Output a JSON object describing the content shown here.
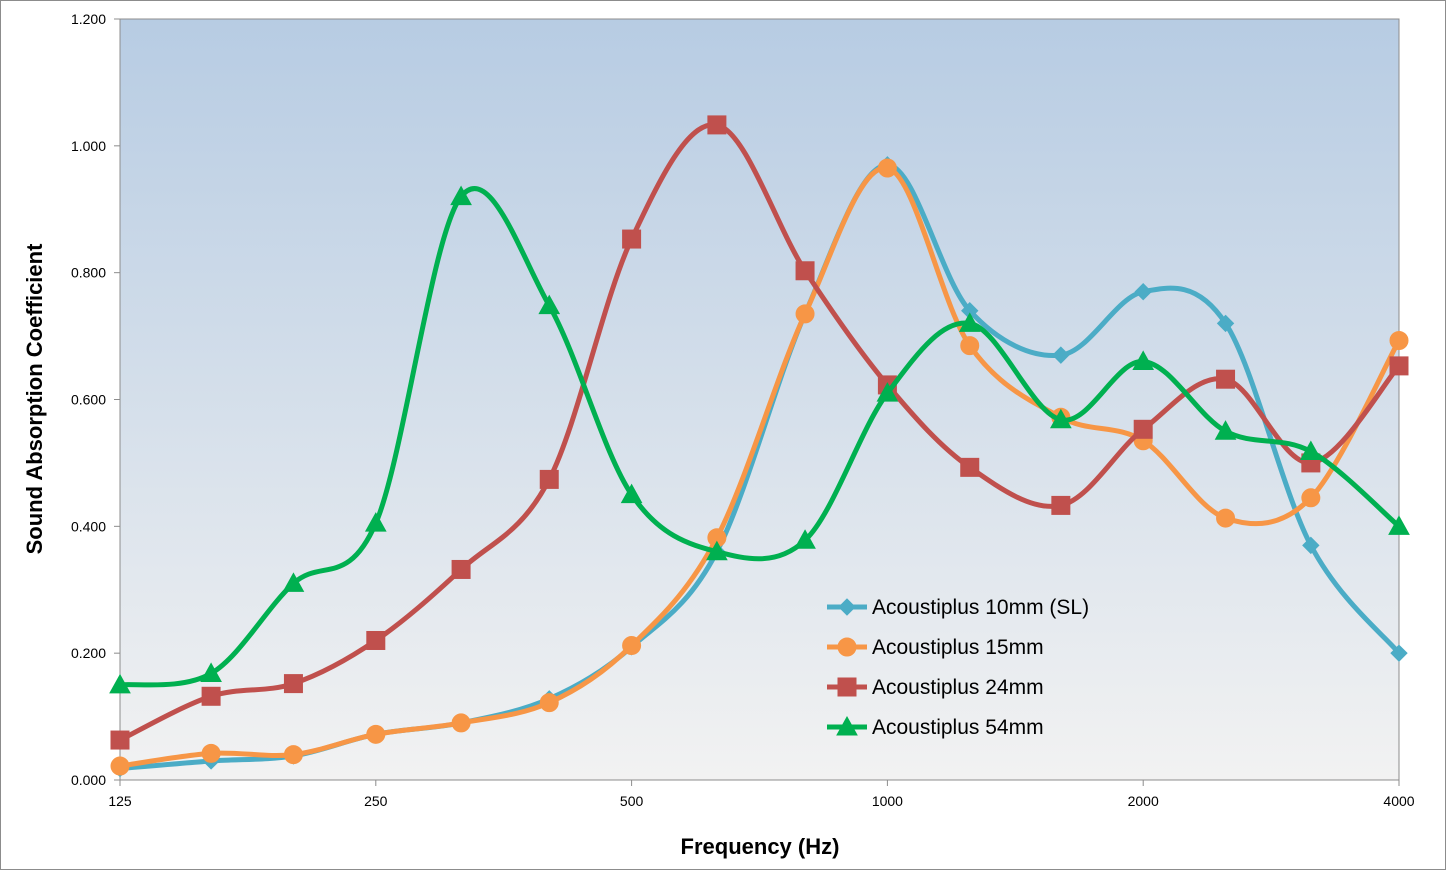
{
  "chart_data": {
    "type": "line",
    "title": "",
    "xlabel": "Frequency (Hz)",
    "ylabel": "Sound Absorption Coefficient",
    "x_scale": "log2",
    "xlim": [
      125,
      4000
    ],
    "ylim": [
      0,
      1.2
    ],
    "x_ticks": [
      {
        "value": 125,
        "label": "125"
      },
      {
        "value": 250,
        "label": "250"
      },
      {
        "value": 500,
        "label": "500"
      },
      {
        "value": 1000,
        "label": "1000"
      },
      {
        "value": 2000,
        "label": "2000"
      },
      {
        "value": 4000,
        "label": "4000"
      }
    ],
    "y_ticks": [
      {
        "value": 0,
        "label": "0.000"
      },
      {
        "value": 0.2,
        "label": "0.200"
      },
      {
        "value": 0.4,
        "label": "0.400"
      },
      {
        "value": 0.6,
        "label": "0.600"
      },
      {
        "value": 0.8,
        "label": "0.800"
      },
      {
        "value": 1.0,
        "label": "1.000"
      },
      {
        "value": 1.2,
        "label": "1.200"
      }
    ],
    "x": [
      125,
      160,
      200,
      250,
      315,
      400,
      500,
      630,
      800,
      1000,
      1250,
      1600,
      2000,
      2500,
      3150,
      4000
    ],
    "plot_background": {
      "top": "#b7cce3",
      "bottom": "#f2f2f2"
    },
    "grid": false,
    "legend_position": "inside-lower-right",
    "series": [
      {
        "name": "Acoustiplus 10mm (SL)",
        "color": "#4bacc6",
        "marker": "diamond",
        "values": [
          0.018,
          0.03,
          0.038,
          0.072,
          0.09,
          0.128,
          0.21,
          0.36,
          0.735,
          0.97,
          0.74,
          0.67,
          0.77,
          0.72,
          0.37,
          0.2
        ]
      },
      {
        "name": "Acoustiplus 15mm",
        "color": "#f79646",
        "marker": "circle",
        "values": [
          0.022,
          0.042,
          0.04,
          0.072,
          0.09,
          0.122,
          0.212,
          0.382,
          0.735,
          0.965,
          0.685,
          0.572,
          0.535,
          0.413,
          0.445,
          0.693
        ]
      },
      {
        "name": "Acoustiplus 24mm",
        "color": "#c0504d",
        "marker": "square",
        "values": [
          0.063,
          0.132,
          0.152,
          0.22,
          0.332,
          0.474,
          0.853,
          1.033,
          0.803,
          0.623,
          0.493,
          0.433,
          0.553,
          0.632,
          0.5,
          0.653
        ]
      },
      {
        "name": "Acoustiplus 54mm",
        "color": "#00b050",
        "marker": "triangle",
        "values": [
          0.15,
          0.168,
          0.31,
          0.405,
          0.92,
          0.748,
          0.45,
          0.36,
          0.378,
          0.61,
          0.72,
          0.568,
          0.66,
          0.55,
          0.518,
          0.4
        ]
      }
    ]
  }
}
